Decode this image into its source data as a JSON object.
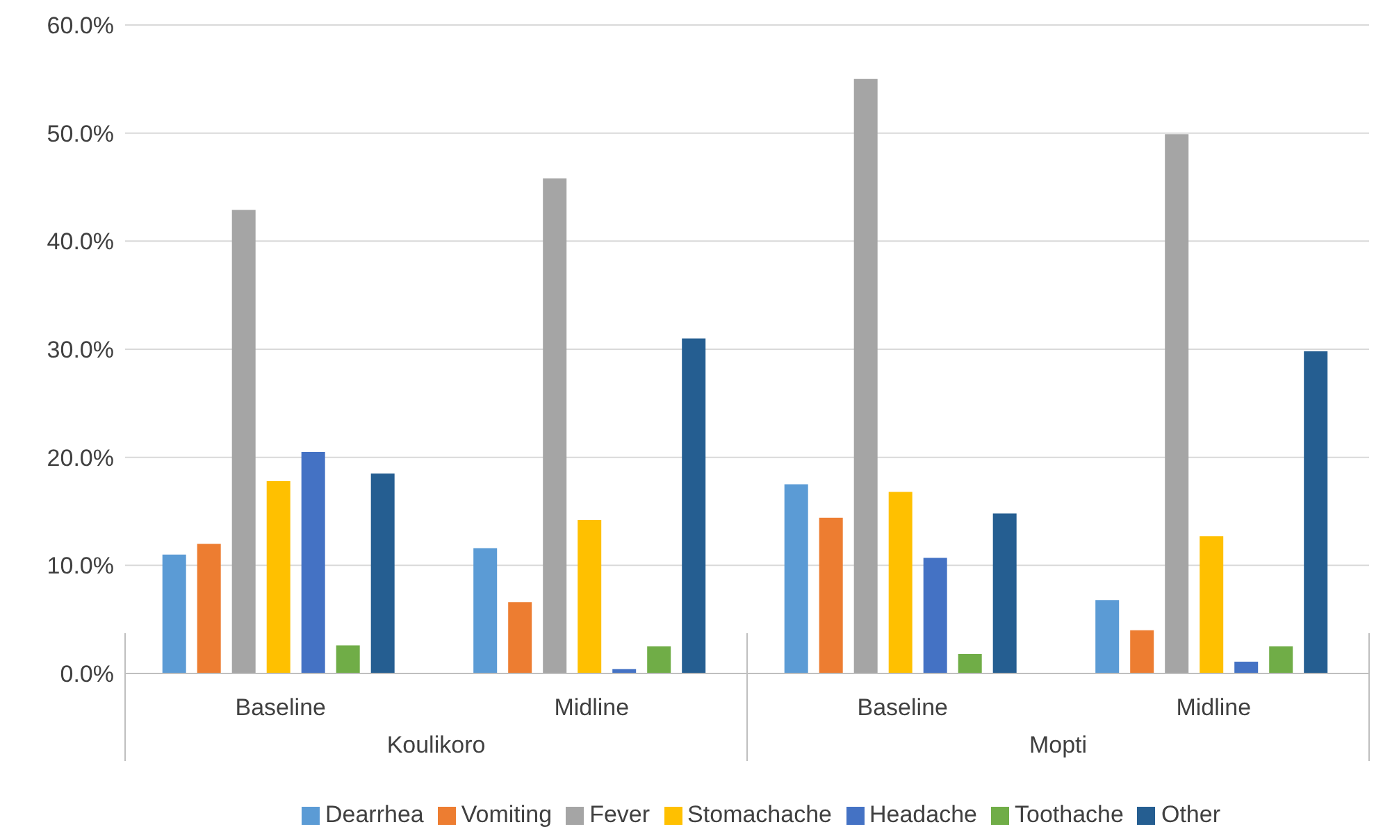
{
  "chart_data": {
    "type": "bar",
    "categories": [
      "Baseline",
      "Midline",
      "Baseline",
      "Midline"
    ],
    "annotations": [
      "Koulikoro",
      "Mopti"
    ],
    "series": [
      {
        "name": "Dearrhea",
        "color": "#5b9bd5",
        "values": [
          11.0,
          11.6,
          17.5,
          6.8
        ]
      },
      {
        "name": "Vomiting",
        "color": "#ed7d31",
        "values": [
          12.0,
          6.6,
          14.4,
          4.0
        ]
      },
      {
        "name": "Fever",
        "color": "#a5a5a5",
        "values": [
          42.9,
          45.8,
          55.0,
          49.9
        ]
      },
      {
        "name": "Stomachache",
        "color": "#ffc000",
        "values": [
          17.8,
          14.2,
          16.8,
          12.7
        ]
      },
      {
        "name": "Headache",
        "color": "#4472c4",
        "values": [
          20.5,
          0.4,
          10.7,
          1.1
        ]
      },
      {
        "name": "Toothache",
        "color": "#70ad47",
        "values": [
          2.6,
          2.5,
          1.8,
          2.5
        ]
      },
      {
        "name": "Other",
        "color": "#255e91",
        "values": [
          18.5,
          31.0,
          14.8,
          29.8
        ]
      }
    ],
    "ylim": [
      0,
      60
    ],
    "yticks": [
      {
        "value": 0,
        "label": "0.0%"
      },
      {
        "value": 10,
        "label": "10.0%"
      },
      {
        "value": 20,
        "label": "20.0%"
      },
      {
        "value": 30,
        "label": "30.0%"
      },
      {
        "value": 40,
        "label": "40.0%"
      },
      {
        "value": 50,
        "label": "50.0%"
      },
      {
        "value": 60,
        "label": "60.0%"
      }
    ],
    "grid": "y",
    "legend": "bottom"
  }
}
